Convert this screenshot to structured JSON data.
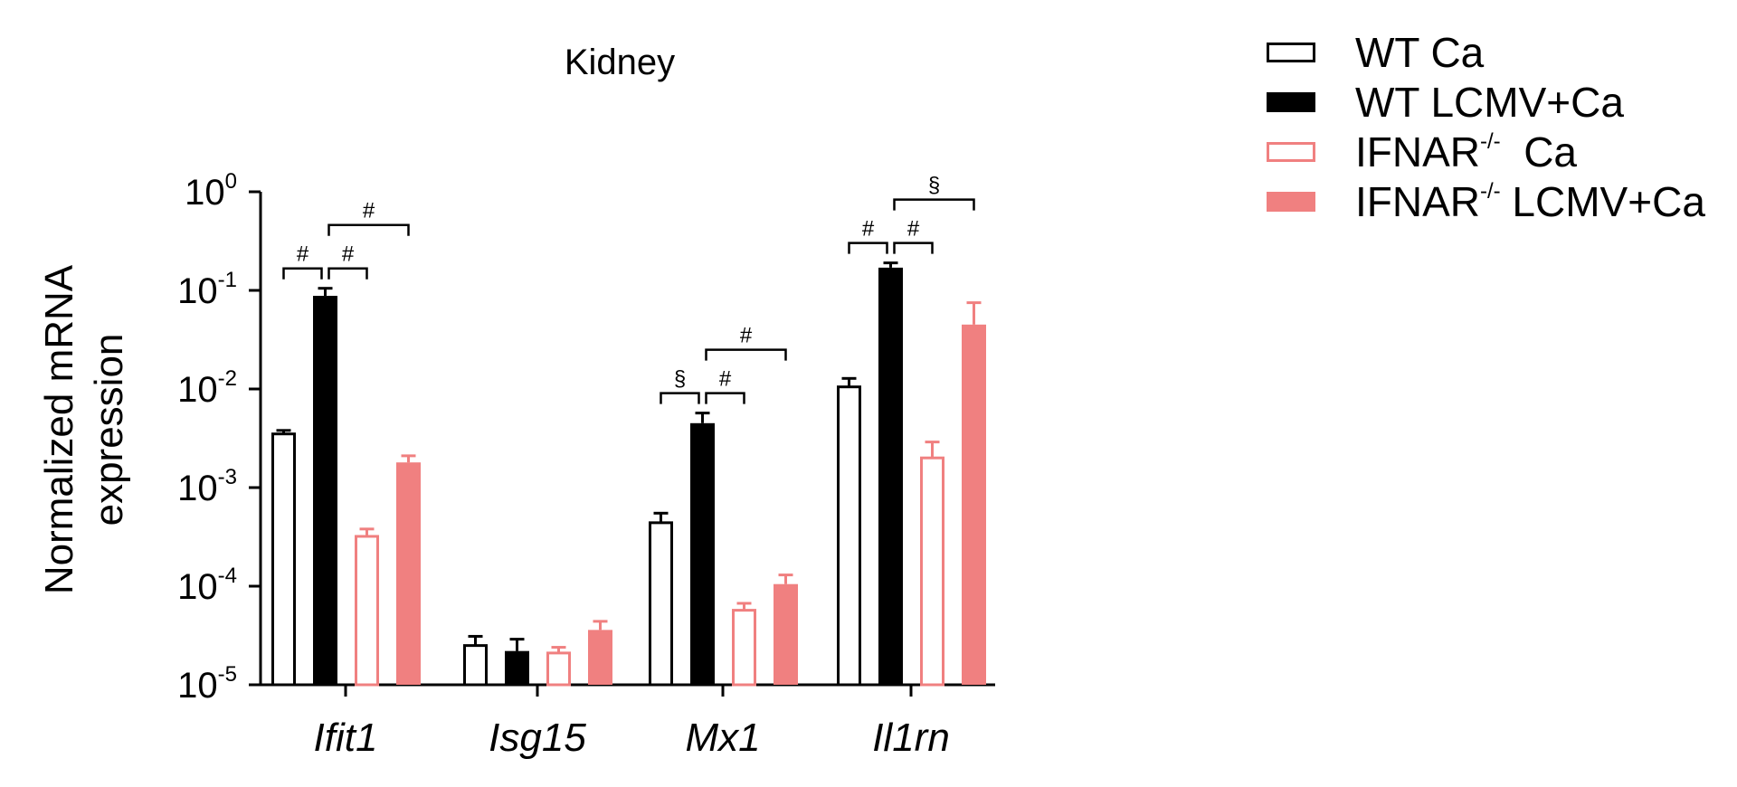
{
  "chart_data": {
    "type": "bar",
    "title": "Kidney",
    "ylabel_line1": "Normalized mRNA",
    "ylabel_line2": "expression",
    "yscale": "log",
    "ylim": [
      1e-05,
      1
    ],
    "yticks": [
      {
        "value": 1,
        "base": "10",
        "exp": "0"
      },
      {
        "value": 0.1,
        "base": "10",
        "exp": "-1"
      },
      {
        "value": 0.01,
        "base": "10",
        "exp": "-2"
      },
      {
        "value": 0.001,
        "base": "10",
        "exp": "-3"
      },
      {
        "value": 0.0001,
        "base": "10",
        "exp": "-4"
      },
      {
        "value": 1e-05,
        "base": "10",
        "exp": "-5"
      }
    ],
    "categories": [
      "Ifit1",
      "Isg15",
      "Mx1",
      "Il1rn"
    ],
    "series": [
      {
        "name": "WT Ca",
        "name_base": "WT Ca",
        "name_sup": "",
        "name_rest": "",
        "style": "open",
        "color": "#000000",
        "values": [
          0.0035,
          2.5e-05,
          0.00044,
          0.0105
        ],
        "errors": [
          0.0038,
          3.1e-05,
          0.00055,
          0.0128
        ]
      },
      {
        "name": "WT LCMV+Ca",
        "name_base": "WT LCMV+Ca",
        "name_sup": "",
        "name_rest": "",
        "style": "filled",
        "color": "#000000",
        "values": [
          0.088,
          2.2e-05,
          0.0045,
          0.17
        ],
        "errors": [
          0.105,
          2.9e-05,
          0.0057,
          0.19
        ]
      },
      {
        "name": "IFNAR-/- Ca",
        "name_base": "IFNAR",
        "name_sup": "-/-",
        "name_rest": "  Ca",
        "style": "open",
        "color": "#f08080",
        "values": [
          0.00032,
          2.1e-05,
          5.7e-05,
          0.002
        ],
        "errors": [
          0.00038,
          2.4e-05,
          6.7e-05,
          0.0029
        ]
      },
      {
        "name": "IFNAR-/- LCMV+Ca",
        "name_base": "IFNAR",
        "name_sup": "-/-",
        "name_rest": " LCMV+Ca",
        "style": "filled",
        "color": "#f08080",
        "values": [
          0.0018,
          3.6e-05,
          0.000105,
          0.045
        ],
        "errors": [
          0.0021,
          4.4e-05,
          0.00013,
          0.075
        ]
      }
    ],
    "annotations": [
      {
        "category": 0,
        "from": 0,
        "to": 1,
        "symbol": "#",
        "tier": 0
      },
      {
        "category": 0,
        "from": 1,
        "to": 2,
        "symbol": "#",
        "tier": 0
      },
      {
        "category": 0,
        "from": 1,
        "to": 3,
        "symbol": "#",
        "tier": 1
      },
      {
        "category": 2,
        "from": 0,
        "to": 1,
        "symbol": "§",
        "tier": 0
      },
      {
        "category": 2,
        "from": 1,
        "to": 2,
        "symbol": "#",
        "tier": 0
      },
      {
        "category": 2,
        "from": 1,
        "to": 3,
        "symbol": "#",
        "tier": 1
      },
      {
        "category": 3,
        "from": 0,
        "to": 1,
        "symbol": "#",
        "tier": 0
      },
      {
        "category": 3,
        "from": 1,
        "to": 2,
        "symbol": "#",
        "tier": 0
      },
      {
        "category": 3,
        "from": 1,
        "to": 3,
        "symbol": "§",
        "tier": 1
      }
    ],
    "legend_position": "top-right"
  }
}
